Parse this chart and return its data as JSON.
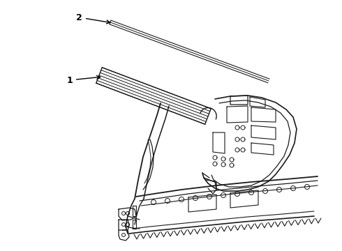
{
  "background_color": "#ffffff",
  "line_color": "#1a1a1a",
  "label_color": "#000000",
  "figsize": [
    4.9,
    3.6
  ],
  "dpi": 100,
  "label1": "1",
  "label2": "2"
}
